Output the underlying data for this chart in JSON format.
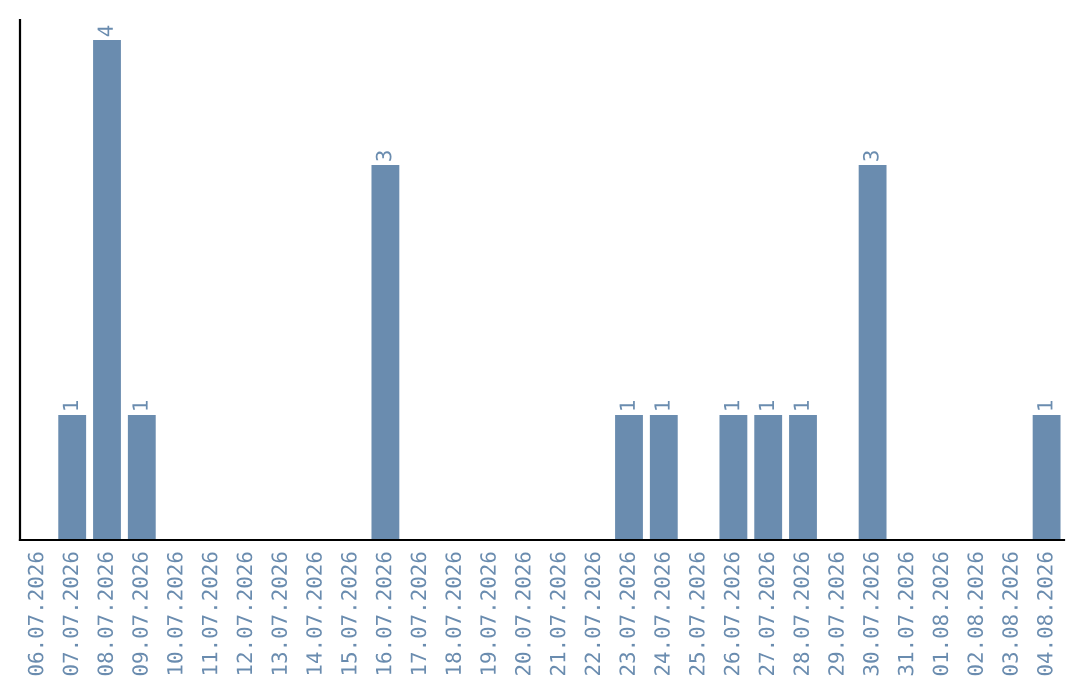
{
  "chart_data": {
    "type": "bar",
    "categories": [
      "06.07.2026",
      "07.07.2026",
      "08.07.2026",
      "09.07.2026",
      "10.07.2026",
      "11.07.2026",
      "12.07.2026",
      "13.07.2026",
      "14.07.2026",
      "15.07.2026",
      "16.07.2026",
      "17.07.2026",
      "18.07.2026",
      "19.07.2026",
      "20.07.2026",
      "21.07.2026",
      "22.07.2026",
      "23.07.2026",
      "24.07.2026",
      "25.07.2026",
      "26.07.2026",
      "27.07.2026",
      "28.07.2026",
      "29.07.2026",
      "30.07.2026",
      "31.07.2026",
      "01.08.2026",
      "02.08.2026",
      "03.08.2026",
      "04.08.2026"
    ],
    "values": [
      0,
      1,
      4,
      1,
      0,
      0,
      0,
      0,
      0,
      0,
      3,
      0,
      0,
      0,
      0,
      0,
      0,
      1,
      1,
      0,
      1,
      1,
      1,
      0,
      3,
      0,
      0,
      0,
      0,
      1
    ],
    "value_labels": [
      null,
      "1",
      "4",
      "1",
      null,
      null,
      null,
      null,
      null,
      null,
      "3",
      null,
      null,
      null,
      null,
      null,
      null,
      "1",
      "1",
      null,
      "1",
      "1",
      "1",
      null,
      "3",
      null,
      null,
      null,
      null,
      "1"
    ],
    "color": "#6a8caf",
    "ylim": [
      0,
      4.16
    ],
    "tick_labels": "x",
    "grid": false
  }
}
